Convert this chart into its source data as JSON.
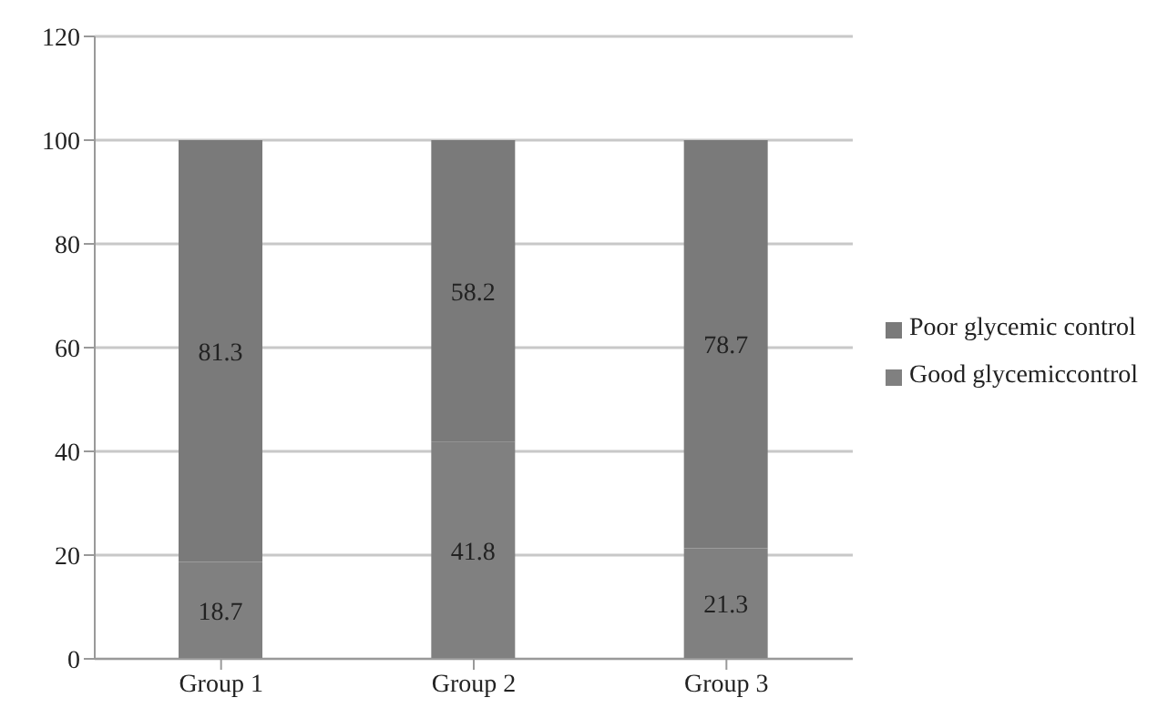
{
  "chart_data": {
    "type": "bar",
    "stacked": true,
    "categories": [
      "Group 1",
      "Group 2",
      "Group 3"
    ],
    "series": [
      {
        "name": "Good glycemiccontrol",
        "color": "#808080",
        "values": [
          18.7,
          41.8,
          21.3
        ]
      },
      {
        "name": "Poor glycemic control",
        "color": "#7a7a7a",
        "values": [
          81.3,
          58.2,
          78.7
        ]
      }
    ],
    "ylim": [
      0,
      120
    ],
    "yticks": [
      0,
      20,
      40,
      60,
      80,
      100,
      120
    ],
    "grid": "y",
    "legend": "right",
    "data_labels": true
  }
}
